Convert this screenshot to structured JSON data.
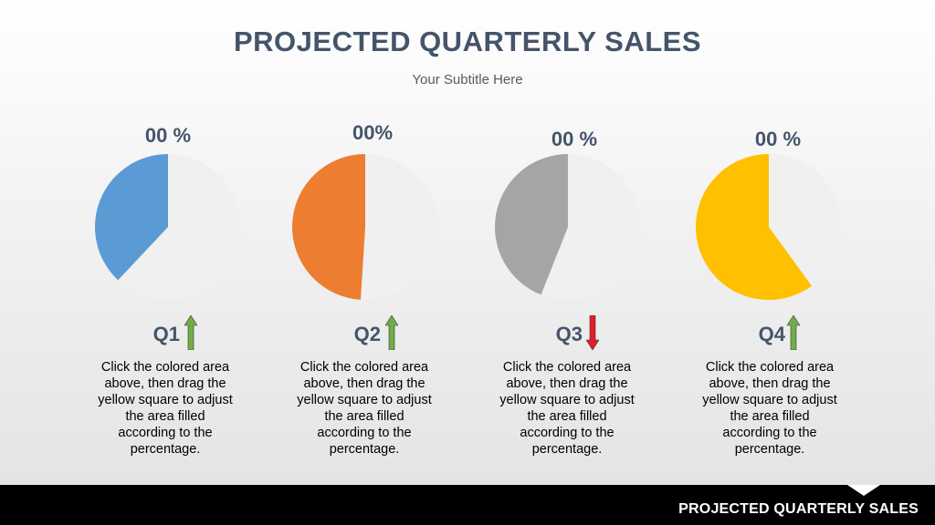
{
  "slide": {
    "title": "PROJECTED QUARTERLY SALES",
    "subtitle": "Your Subtitle Here"
  },
  "quarters": [
    {
      "percent_label": "00 %",
      "label": "Q1",
      "trend": "up",
      "filled_fraction": 0.38,
      "fill_color": "#5b9bd5",
      "arrow_color": "#70ad47",
      "description": [
        "Click the colored area",
        "above, then drag the",
        "yellow square to adjust",
        "the area filled",
        "according to the",
        "percentage."
      ]
    },
    {
      "percent_label": "00%",
      "label": "Q2",
      "trend": "up",
      "filled_fraction": 0.49,
      "fill_color": "#ed7d31",
      "arrow_color": "#70ad47",
      "description": [
        "Click the colored area",
        "above, then drag the",
        "yellow square to adjust",
        "the area filled",
        "according to the",
        "percentage."
      ]
    },
    {
      "percent_label": "00 %",
      "label": "Q3",
      "trend": "down",
      "filled_fraction": 0.44,
      "fill_color": "#a5a5a5",
      "arrow_color": "#e01e26",
      "description": [
        "Click the colored area",
        "above, then drag the",
        "yellow square to adjust",
        "the area filled",
        "according to the",
        "percentage."
      ]
    },
    {
      "percent_label": "00 %",
      "label": "Q4",
      "trend": "up",
      "filled_fraction": 0.6,
      "fill_color": "#ffc000",
      "arrow_color": "#70ad47",
      "description": [
        "Click the colored area",
        "above, then drag the",
        "yellow square to adjust",
        "the area filled",
        "according to the",
        "percentage."
      ]
    }
  ],
  "colors": {
    "title": "#44546a",
    "pie_background": "#f0f0f0",
    "footer_background": "#000000"
  },
  "footer": {
    "text": "PROJECTED QUARTERLY SALES"
  }
}
